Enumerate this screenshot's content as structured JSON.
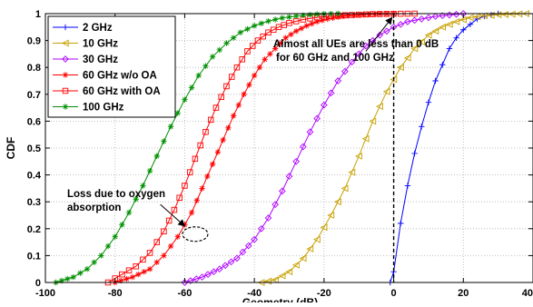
{
  "chart_data": {
    "type": "line",
    "xlabel": "Geometry (dB)",
    "ylabel": "CDF",
    "xlim": [
      -100,
      40
    ],
    "ylim": [
      0,
      1
    ],
    "x_ticks": [
      -100,
      -80,
      -60,
      -40,
      -20,
      0,
      20,
      40
    ],
    "x_tick_labels": [
      "-100",
      "-80",
      "-60",
      "-40",
      "-20",
      "0",
      "20",
      "40"
    ],
    "y_ticks": [
      0,
      0.1,
      0.2,
      0.3,
      0.4,
      0.5,
      0.6,
      0.7,
      0.8,
      0.9,
      1
    ],
    "y_tick_labels": [
      "0",
      "0.1",
      "0.2",
      "0.3",
      "0.4",
      "0.5",
      "0.6",
      "0.7",
      "0.8",
      "0.9",
      "1"
    ],
    "grid": true,
    "legend_position": "top-left",
    "series": [
      {
        "name": "2 GHz",
        "color": "#0000ff",
        "marker": "plus",
        "x": [
          -1,
          0,
          2,
          4,
          6,
          8,
          10,
          12,
          14,
          16,
          18,
          20,
          22,
          24,
          26,
          28,
          30
        ],
        "y": [
          0,
          0.04,
          0.22,
          0.36,
          0.48,
          0.58,
          0.67,
          0.75,
          0.81,
          0.87,
          0.91,
          0.94,
          0.96,
          0.98,
          0.99,
          0.995,
          1
        ]
      },
      {
        "name": "10 GHz",
        "color": "#c8a000",
        "marker": "triangle-left",
        "x": [
          -38,
          -34,
          -30,
          -26,
          -22,
          -18,
          -14,
          -10,
          -6,
          -2,
          2,
          6,
          10,
          14,
          18,
          22,
          26,
          30,
          34,
          38
        ],
        "y": [
          0,
          0.01,
          0.04,
          0.09,
          0.16,
          0.25,
          0.35,
          0.47,
          0.6,
          0.71,
          0.8,
          0.87,
          0.92,
          0.95,
          0.97,
          0.985,
          0.992,
          0.996,
          0.998,
          1
        ]
      },
      {
        "name": "30 GHz",
        "color": "#b000ff",
        "marker": "diamond",
        "x": [
          -60,
          -55,
          -50,
          -45,
          -40,
          -36,
          -32,
          -28,
          -24,
          -20,
          -16,
          -12,
          -8,
          -4,
          0,
          4,
          8,
          12,
          16,
          20
        ],
        "y": [
          0,
          0.02,
          0.05,
          0.09,
          0.16,
          0.24,
          0.34,
          0.45,
          0.56,
          0.66,
          0.75,
          0.82,
          0.88,
          0.92,
          0.95,
          0.97,
          0.98,
          0.99,
          0.995,
          1
        ]
      },
      {
        "name": "60 GHz w/o OA",
        "color": "#ff0000",
        "marker": "star",
        "x": [
          -80,
          -75,
          -70,
          -66,
          -62,
          -58,
          -55,
          -52,
          -49,
          -46,
          -43,
          -40,
          -37,
          -34,
          -31,
          -28,
          -25,
          -22,
          -19,
          -16,
          -13,
          -10,
          -7,
          -4,
          0
        ],
        "y": [
          0,
          0.02,
          0.05,
          0.1,
          0.17,
          0.26,
          0.35,
          0.44,
          0.53,
          0.62,
          0.7,
          0.77,
          0.83,
          0.87,
          0.91,
          0.935,
          0.955,
          0.97,
          0.98,
          0.987,
          0.992,
          0.995,
          0.997,
          0.999,
          1
        ]
      },
      {
        "name": "60 GHz with OA",
        "color": "#ff0000",
        "marker": "square",
        "x": [
          -82,
          -78,
          -74,
          -70,
          -66,
          -63,
          -60,
          -57,
          -54,
          -51,
          -48,
          -45,
          -42,
          -39,
          -36,
          -33,
          -30,
          -26,
          -22,
          -18,
          -14,
          -10,
          -6,
          -2,
          2,
          6
        ],
        "y": [
          0,
          0.03,
          0.06,
          0.11,
          0.19,
          0.27,
          0.36,
          0.46,
          0.56,
          0.65,
          0.73,
          0.8,
          0.86,
          0.9,
          0.93,
          0.95,
          0.965,
          0.978,
          0.986,
          0.991,
          0.994,
          0.996,
          0.998,
          0.999,
          0.9995,
          1
        ]
      },
      {
        "name": "100 GHz",
        "color": "#009000",
        "marker": "star",
        "x": [
          -97,
          -92,
          -88,
          -84,
          -80,
          -76,
          -72,
          -68,
          -64,
          -60,
          -56,
          -52,
          -48,
          -44,
          -40,
          -36,
          -32,
          -28,
          -24,
          -20,
          -16
        ],
        "y": [
          0,
          0.02,
          0.05,
          0.1,
          0.17,
          0.26,
          0.36,
          0.47,
          0.58,
          0.68,
          0.77,
          0.84,
          0.89,
          0.93,
          0.955,
          0.972,
          0.984,
          0.991,
          0.996,
          0.999,
          1
        ]
      }
    ],
    "annotations": [
      {
        "id": "loss",
        "lines": [
          "Loss due to oxygen",
          "absorption"
        ]
      },
      {
        "id": "almost",
        "lines": [
          "Almost all UEs are less than 0 dB",
          "for 60 GHz and 100 GHz"
        ]
      }
    ]
  }
}
